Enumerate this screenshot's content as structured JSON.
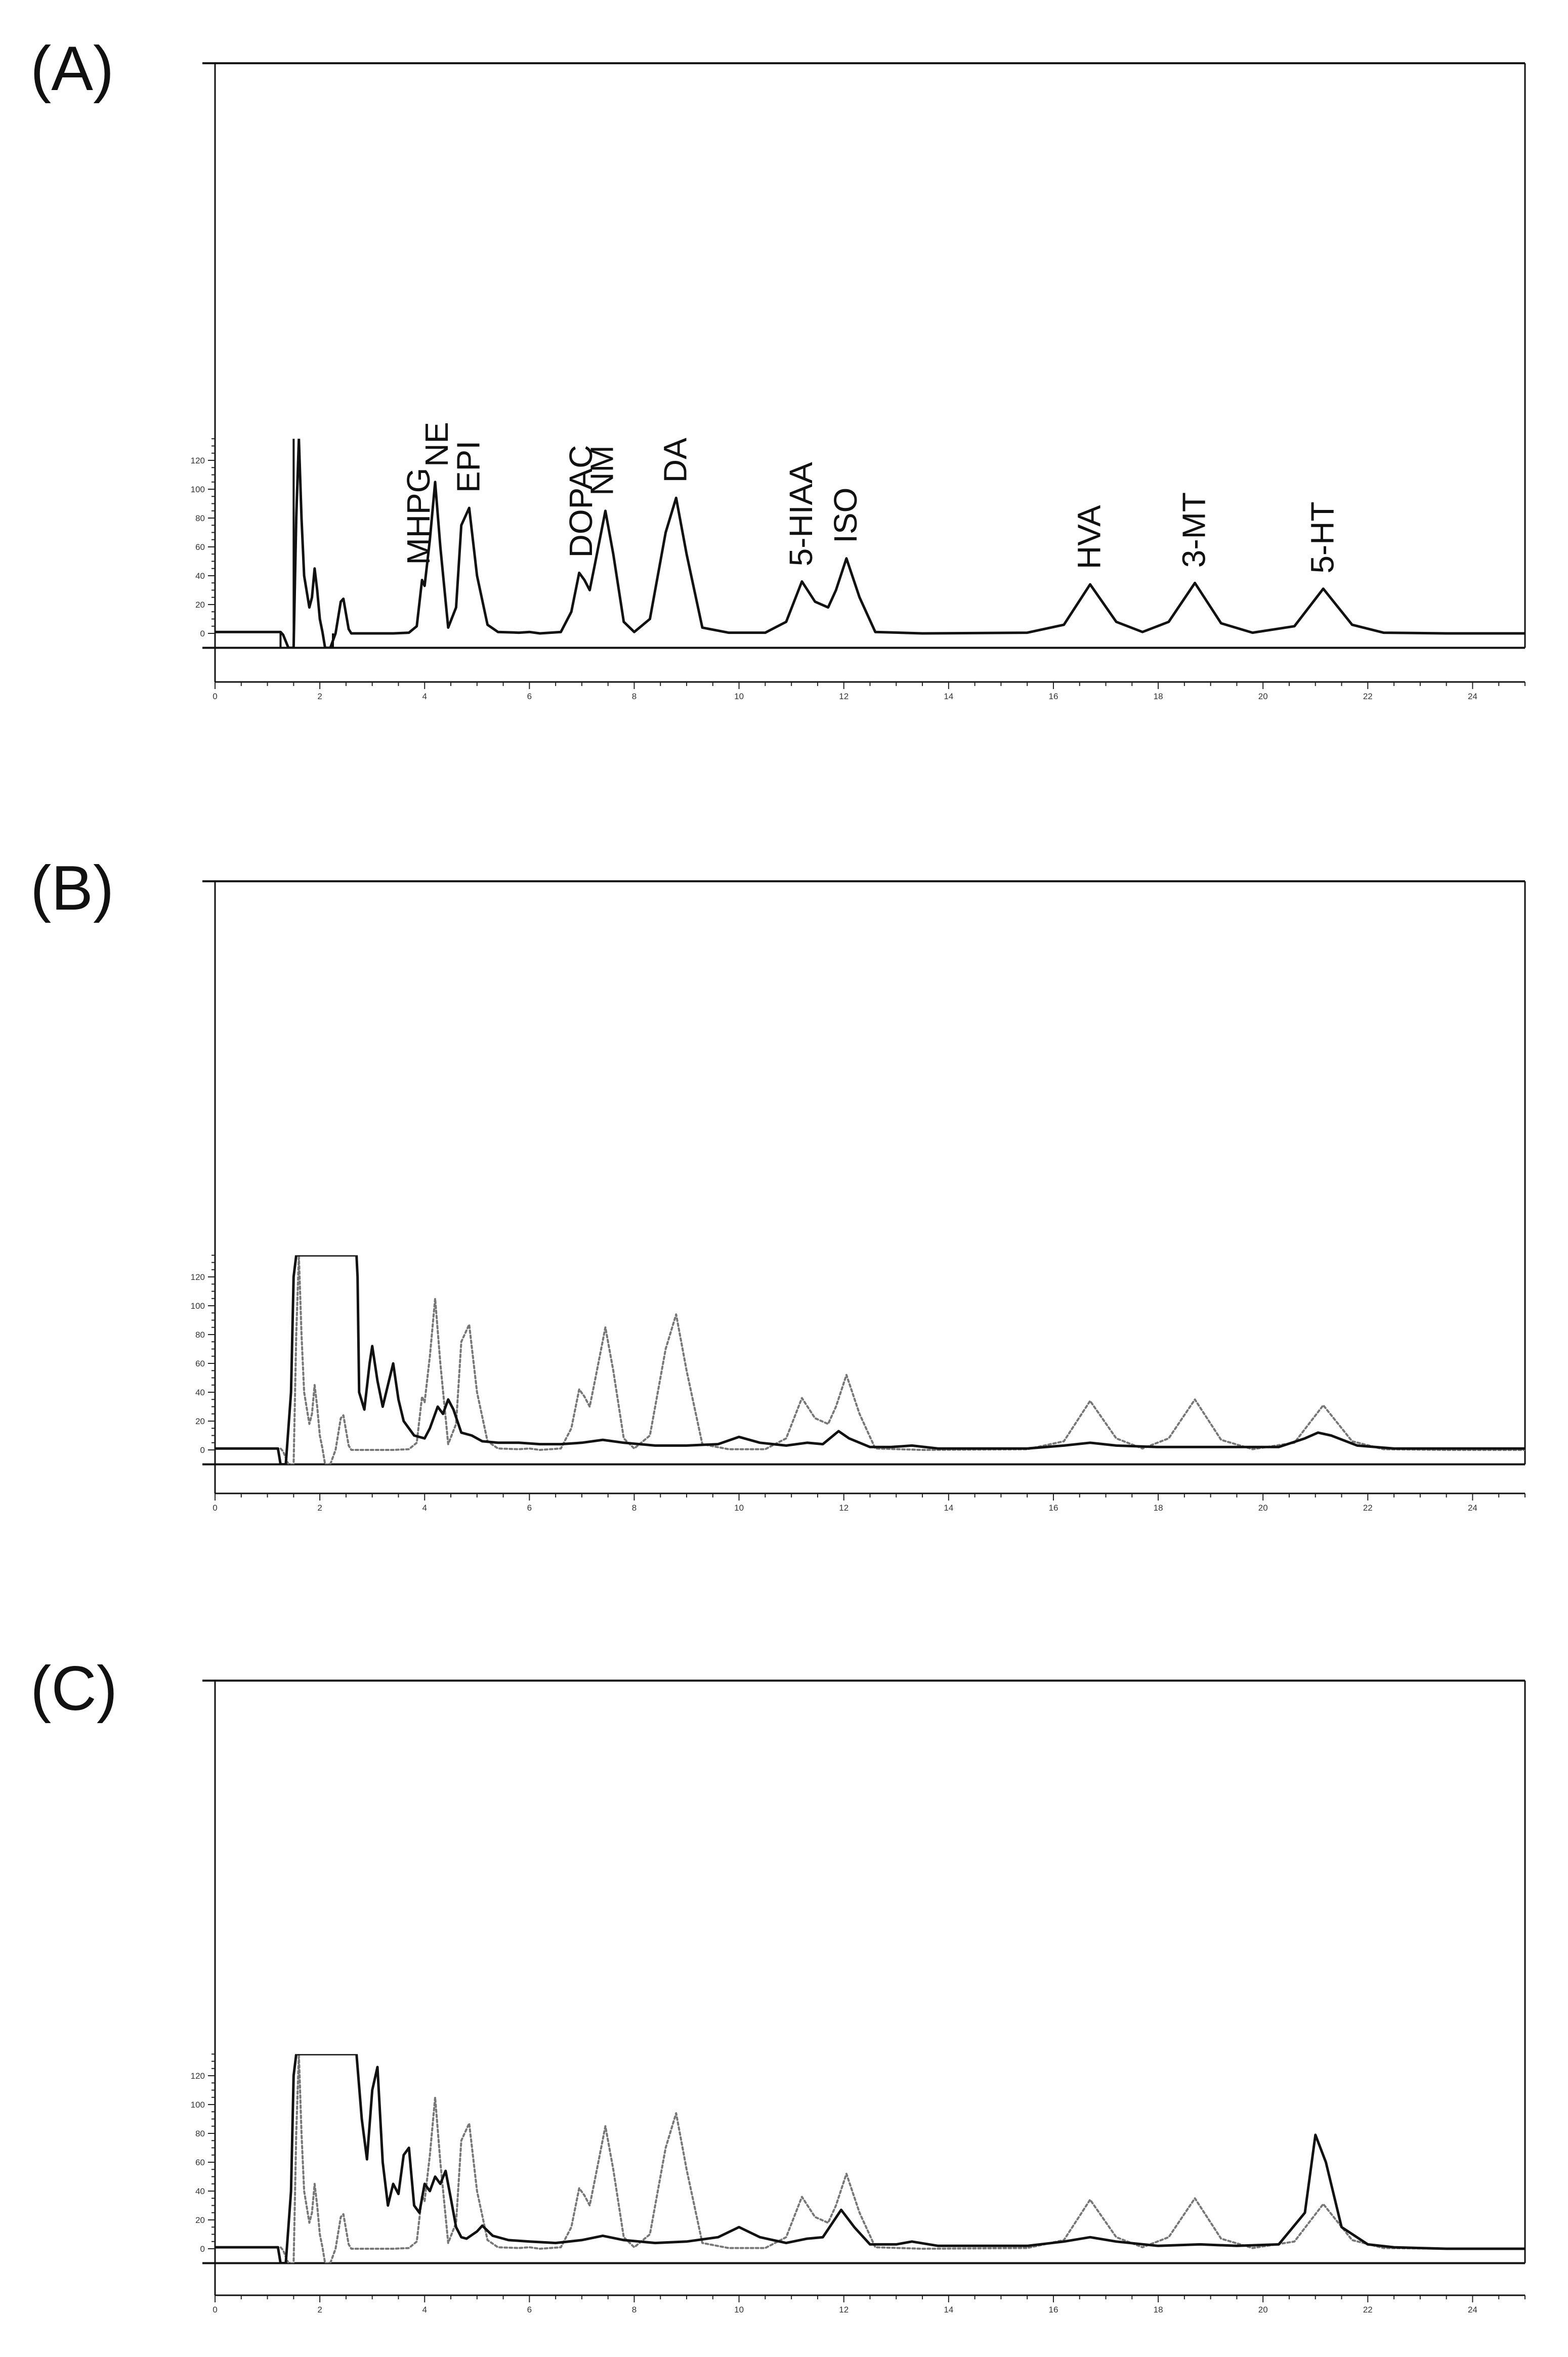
{
  "chart_data": [
    {
      "type": "line",
      "panel_label": "(A)",
      "title": "",
      "xlabel": "",
      "ylabel": "",
      "xlim": [
        0,
        25
      ],
      "ylim": [
        -10,
        135
      ],
      "x_ticks": [
        0,
        2,
        4,
        6,
        8,
        10,
        12,
        14,
        16,
        18,
        20,
        22,
        24
      ],
      "y_ticks": [
        0,
        20,
        40,
        60,
        80,
        100,
        120
      ],
      "grid": false,
      "peaks": [
        {
          "label": "MHPG",
          "x": 3.9,
          "y": 37
        },
        {
          "label": "NE",
          "x": 4.25,
          "y": 105
        },
        {
          "label": "EPI",
          "x": 4.85,
          "y": 87
        },
        {
          "label": "DOPAC",
          "x": 7.0,
          "y": 42
        },
        {
          "label": "NM",
          "x": 7.4,
          "y": 85
        },
        {
          "label": "DA",
          "x": 8.8,
          "y": 94
        },
        {
          "label": "5-HIAA",
          "x": 11.2,
          "y": 36
        },
        {
          "label": "ISO",
          "x": 12.05,
          "y": 52
        },
        {
          "label": "HVA",
          "x": 16.7,
          "y": 34
        },
        {
          "label": "3-MT",
          "x": 18.7,
          "y": 35
        },
        {
          "label": "5-HT",
          "x": 21.15,
          "y": 31
        }
      ],
      "series": [
        {
          "style": "solid",
          "color": "#111111",
          "x": [
            0,
            1.25,
            1.3,
            1.4,
            1.5,
            1.55,
            1.6,
            1.65,
            1.7,
            1.8,
            1.85,
            1.9,
            1.95,
            2.0,
            2.05,
            2.1,
            2.2,
            2.3,
            2.4,
            2.45,
            2.55,
            2.6,
            2.7,
            3.0,
            3.4,
            3.7,
            3.85,
            3.95,
            4.0,
            4.1,
            4.2,
            4.3,
            4.45,
            4.6,
            4.7,
            4.85,
            5.0,
            5.2,
            5.4,
            5.8,
            6.0,
            6.2,
            6.6,
            6.8,
            6.95,
            7.05,
            7.15,
            7.25,
            7.45,
            7.6,
            7.8,
            8.0,
            8.3,
            8.6,
            8.8,
            9.0,
            9.3,
            9.8,
            10.5,
            10.9,
            11.2,
            11.45,
            11.7,
            11.85,
            12.05,
            12.3,
            12.6,
            13.5,
            15.5,
            16.2,
            16.7,
            17.2,
            17.7,
            18.2,
            18.7,
            19.2,
            19.8,
            20.6,
            21.15,
            21.7,
            22.3,
            23.5,
            25
          ],
          "y": [
            1,
            1,
            -1,
            -10,
            -10,
            80,
            135,
            80,
            40,
            18,
            25,
            45,
            30,
            10,
            1,
            -10,
            -10,
            0,
            22,
            24,
            3,
            0,
            0,
            0,
            0,
            0.5,
            5,
            37,
            33,
            65,
            105,
            60,
            4,
            18,
            75,
            87,
            40,
            6,
            1,
            0.5,
            1,
            0,
            1,
            15,
            42,
            37,
            30,
            48,
            85,
            55,
            8,
            1,
            10,
            70,
            94,
            55,
            4,
            0.5,
            0.5,
            8,
            36,
            22,
            18,
            30,
            52,
            25,
            1,
            0,
            0.5,
            6,
            34,
            8,
            1,
            8,
            35,
            7,
            0.5,
            5,
            31,
            6,
            0.5,
            0,
            0
          ]
        },
        {
          "style": "vertical-lines",
          "color": "#111111",
          "x": [
            1.25,
            1.5,
            2.25
          ],
          "y": [
            [
              -10,
              1
            ],
            [
              -10,
              135
            ],
            [
              -10,
              0
            ]
          ]
        }
      ]
    },
    {
      "type": "line",
      "panel_label": "(B)",
      "title": "",
      "xlabel": "",
      "ylabel": "",
      "xlim": [
        0,
        25
      ],
      "ylim": [
        -10,
        135
      ],
      "x_ticks": [
        0,
        2,
        4,
        6,
        8,
        10,
        12,
        14,
        16,
        18,
        20,
        22,
        24
      ],
      "y_ticks": [
        0,
        20,
        40,
        60,
        80,
        100,
        120
      ],
      "grid": false,
      "series": [
        {
          "style": "dotted",
          "color": "#777777",
          "x": [
            0,
            1.25,
            1.3,
            1.4,
            1.5,
            1.55,
            1.6,
            1.65,
            1.7,
            1.8,
            1.85,
            1.9,
            1.95,
            2.0,
            2.05,
            2.1,
            2.2,
            2.3,
            2.4,
            2.45,
            2.55,
            2.6,
            2.7,
            3.0,
            3.4,
            3.7,
            3.85,
            3.95,
            4.0,
            4.1,
            4.2,
            4.3,
            4.45,
            4.6,
            4.7,
            4.85,
            5.0,
            5.2,
            5.4,
            5.8,
            6.0,
            6.2,
            6.6,
            6.8,
            6.95,
            7.05,
            7.15,
            7.25,
            7.45,
            7.6,
            7.8,
            8.0,
            8.3,
            8.6,
            8.8,
            9.0,
            9.3,
            9.8,
            10.5,
            10.9,
            11.2,
            11.45,
            11.7,
            11.85,
            12.05,
            12.3,
            12.6,
            13.5,
            15.5,
            16.2,
            16.7,
            17.2,
            17.7,
            18.2,
            18.7,
            19.2,
            19.8,
            20.6,
            21.15,
            21.7,
            22.3,
            23.5,
            25
          ],
          "y": [
            1,
            1,
            -1,
            -10,
            -10,
            80,
            135,
            80,
            40,
            18,
            25,
            45,
            30,
            10,
            1,
            -10,
            -10,
            0,
            22,
            24,
            3,
            0,
            0,
            0,
            0,
            0.5,
            5,
            37,
            33,
            65,
            105,
            60,
            4,
            18,
            75,
            87,
            40,
            6,
            1,
            0.5,
            1,
            0,
            1,
            15,
            42,
            37,
            30,
            48,
            85,
            55,
            8,
            1,
            10,
            70,
            94,
            55,
            4,
            0.5,
            0.5,
            8,
            36,
            22,
            18,
            30,
            52,
            25,
            1,
            0,
            0.5,
            6,
            34,
            8,
            1,
            8,
            35,
            7,
            0.5,
            5,
            31,
            6,
            0.5,
            0,
            0
          ]
        },
        {
          "style": "solid",
          "color": "#111111",
          "x": [
            0,
            1.2,
            1.25,
            1.35,
            1.45,
            1.5,
            1.55,
            1.6,
            1.7,
            1.8,
            2.0,
            2.3,
            2.6,
            2.7,
            2.72,
            2.75,
            2.85,
            2.95,
            3.0,
            3.1,
            3.2,
            3.3,
            3.4,
            3.5,
            3.6,
            3.8,
            4.0,
            4.1,
            4.25,
            4.35,
            4.45,
            4.55,
            4.7,
            4.9,
            5.1,
            5.4,
            5.8,
            6.2,
            6.6,
            7.0,
            7.4,
            7.8,
            8.4,
            9.0,
            9.6,
            10.0,
            10.4,
            10.9,
            11.3,
            11.6,
            11.9,
            12.1,
            12.5,
            12.9,
            13.3,
            13.8,
            14.5,
            15.5,
            16.2,
            16.7,
            17.2,
            18.0,
            18.8,
            19.5,
            20.3,
            20.8,
            21.05,
            21.3,
            21.8,
            22.5,
            23.5,
            25
          ],
          "y": [
            1,
            1,
            -10,
            -10,
            40,
            120,
            135,
            135,
            135,
            135,
            135,
            135,
            135,
            135,
            120,
            40,
            28,
            60,
            72,
            48,
            30,
            45,
            60,
            35,
            20,
            10,
            8,
            15,
            30,
            25,
            35,
            28,
            12,
            10,
            6,
            5,
            5,
            4,
            4,
            5,
            7,
            5,
            3,
            3,
            4,
            9,
            5,
            3,
            5,
            4,
            13,
            8,
            2,
            2,
            3,
            1,
            1,
            1,
            3,
            5,
            3,
            2,
            2,
            2,
            2,
            8,
            12,
            10,
            3,
            1,
            1,
            1
          ]
        }
      ]
    },
    {
      "type": "line",
      "panel_label": "(C)",
      "title": "",
      "xlabel": "",
      "ylabel": "",
      "xlim": [
        0,
        25
      ],
      "ylim": [
        -10,
        135
      ],
      "x_ticks": [
        0,
        2,
        4,
        6,
        8,
        10,
        12,
        14,
        16,
        18,
        20,
        22,
        24
      ],
      "y_ticks": [
        0,
        20,
        40,
        60,
        80,
        100,
        120
      ],
      "grid": false,
      "series": [
        {
          "style": "dotted",
          "color": "#777777",
          "x": [
            0,
            1.25,
            1.3,
            1.4,
            1.5,
            1.55,
            1.6,
            1.65,
            1.7,
            1.8,
            1.85,
            1.9,
            1.95,
            2.0,
            2.05,
            2.1,
            2.2,
            2.3,
            2.4,
            2.45,
            2.55,
            2.6,
            2.7,
            3.0,
            3.4,
            3.7,
            3.85,
            3.95,
            4.0,
            4.1,
            4.2,
            4.3,
            4.45,
            4.6,
            4.7,
            4.85,
            5.0,
            5.2,
            5.4,
            5.8,
            6.0,
            6.2,
            6.6,
            6.8,
            6.95,
            7.05,
            7.15,
            7.25,
            7.45,
            7.6,
            7.8,
            8.0,
            8.3,
            8.6,
            8.8,
            9.0,
            9.3,
            9.8,
            10.5,
            10.9,
            11.2,
            11.45,
            11.7,
            11.85,
            12.05,
            12.3,
            12.6,
            13.5,
            15.5,
            16.2,
            16.7,
            17.2,
            17.7,
            18.2,
            18.7,
            19.2,
            19.8,
            20.6,
            21.15,
            21.7,
            22.3,
            23.5,
            25
          ],
          "y": [
            1,
            1,
            -1,
            -10,
            -10,
            80,
            135,
            80,
            40,
            18,
            25,
            45,
            30,
            10,
            1,
            -10,
            -10,
            0,
            22,
            24,
            3,
            0,
            0,
            0,
            0,
            0.5,
            5,
            37,
            33,
            65,
            105,
            60,
            4,
            18,
            75,
            87,
            40,
            6,
            1,
            0.5,
            1,
            0,
            1,
            15,
            42,
            37,
            30,
            48,
            85,
            55,
            8,
            1,
            10,
            70,
            94,
            55,
            4,
            0.5,
            0.5,
            8,
            36,
            22,
            18,
            30,
            52,
            25,
            1,
            0,
            0.5,
            6,
            34,
            8,
            1,
            8,
            35,
            7,
            0.5,
            5,
            31,
            6,
            0.5,
            0,
            0
          ]
        },
        {
          "style": "solid",
          "color": "#111111",
          "x": [
            0,
            1.2,
            1.25,
            1.35,
            1.45,
            1.5,
            1.55,
            1.6,
            1.7,
            2.0,
            2.4,
            2.7,
            2.8,
            2.9,
            3.0,
            3.1,
            3.2,
            3.3,
            3.4,
            3.5,
            3.6,
            3.7,
            3.8,
            3.9,
            4.0,
            4.1,
            4.2,
            4.3,
            4.4,
            4.5,
            4.6,
            4.7,
            4.8,
            5.0,
            5.1,
            5.3,
            5.6,
            6.0,
            6.5,
            7.0,
            7.4,
            7.8,
            8.4,
            9.0,
            9.6,
            10.0,
            10.4,
            10.9,
            11.3,
            11.6,
            11.95,
            12.2,
            12.5,
            13.0,
            13.3,
            13.8,
            14.5,
            15.5,
            16.2,
            16.7,
            17.2,
            18.0,
            18.8,
            19.5,
            20.3,
            20.8,
            21.0,
            21.2,
            21.5,
            22.0,
            22.5,
            23.5,
            25
          ],
          "y": [
            1,
            1,
            -10,
            -10,
            40,
            120,
            135,
            135,
            135,
            135,
            135,
            135,
            90,
            62,
            110,
            126,
            60,
            30,
            45,
            38,
            65,
            70,
            30,
            25,
            45,
            40,
            50,
            45,
            54,
            35,
            15,
            8,
            7,
            12,
            16,
            9,
            6,
            5,
            4,
            6,
            9,
            6,
            4,
            5,
            8,
            15,
            8,
            4,
            7,
            8,
            27,
            15,
            3,
            3,
            5,
            2,
            2,
            2,
            5,
            8,
            5,
            2,
            3,
            2,
            3,
            25,
            79,
            60,
            15,
            3,
            1,
            0,
            0
          ]
        }
      ]
    }
  ]
}
